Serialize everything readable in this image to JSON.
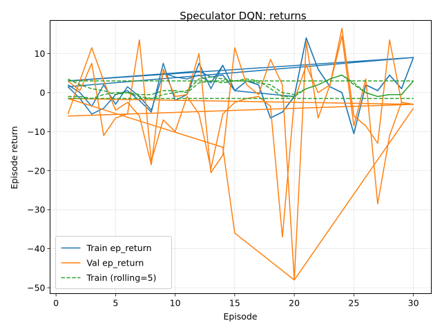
{
  "chart_data": {
    "type": "line",
    "title": "Speculator DQN: returns",
    "xlabel": "Episode",
    "ylabel": "Episode return",
    "xlim": [
      -0.5,
      31.5
    ],
    "ylim": [
      -51.5,
      18.5
    ],
    "x_ticks": [
      0,
      5,
      10,
      15,
      20,
      25,
      30
    ],
    "x_tick_labels": [
      "0",
      "5",
      "10",
      "15",
      "20",
      "25",
      "30"
    ],
    "y_ticks": [
      -50,
      -40,
      -30,
      -20,
      -10,
      0,
      10
    ],
    "y_tick_labels": [
      "−50",
      "−40",
      "−30",
      "−20",
      "−10",
      "0",
      "10"
    ],
    "grid": true,
    "legend_position": "lower-left",
    "series": [
      {
        "name": "Train ep_return",
        "color": "#1f77b4",
        "style": "solid",
        "runs": [
          {
            "x": [
              1,
              2,
              3,
              4,
              5,
              6,
              7,
              8,
              9,
              10,
              11,
              12,
              13,
              14,
              15,
              16,
              17,
              18,
              19,
              20,
              21,
              22,
              23,
              24,
              25,
              26,
              27,
              28,
              29,
              30
            ],
            "y": [
              1.5,
              -1.5,
              -5.5,
              -4.0,
              -0.5,
              0.5,
              -2.0,
              -5.0,
              7.5,
              -2.0,
              -0.5,
              7.5,
              1.0,
              7.0,
              0.5,
              3.0,
              2.0,
              -6.5,
              -5.0,
              -1.0,
              14.0,
              6.0,
              1.5,
              0.0,
              -10.5,
              2.0,
              0.5,
              4.5,
              1.0,
              9.0
            ]
          },
          {
            "x": [
              1,
              2,
              3,
              4,
              5,
              6,
              7,
              8,
              9,
              10,
              11,
              12,
              13,
              14,
              15,
              16,
              17,
              18,
              19,
              20,
              21,
              22,
              23,
              24,
              25,
              26,
              27,
              28,
              29,
              30
            ],
            "y": [
              2.0,
              0.0,
              -3.5,
              2.0,
              -3.0,
              1.5,
              -1.0,
              -4.5,
              5.0,
              4.0,
              3.5,
              4.5,
              2.5,
              7.0,
              0.5,
              3.0,
              2.0,
              -6.5,
              -5.0,
              -1.0,
              14.0,
              6.0,
              1.5,
              0.0,
              -10.5,
              2.0,
              0.5,
              4.5,
              1.0,
              9.0
            ]
          },
          {
            "x": [
              1,
              30,
              1
            ],
            "y": [
              1.5,
              9.0,
              3.0
            ]
          },
          {
            "x": [
              1,
              12,
              13,
              14,
              15,
              20
            ],
            "y": [
              3.0,
              5.5,
              4.0,
              4.5,
              0.5,
              -1.0
            ]
          }
        ]
      },
      {
        "name": "Val ep_return",
        "color": "#ff7f0e",
        "style": "solid",
        "runs": [
          {
            "x": [
              1,
              2,
              3,
              4,
              5,
              6,
              7,
              8,
              9,
              10,
              11,
              12,
              13,
              14,
              15,
              16,
              17,
              18,
              19,
              20,
              21,
              22,
              23,
              24,
              25,
              26,
              27,
              28,
              29,
              30
            ],
            "y": [
              -5.5,
              3.0,
              11.5,
              3.0,
              -4.5,
              -2.5,
              -6.0,
              -18.5,
              6.0,
              -1.0,
              -0.5,
              10.0,
              -20.5,
              -16.0,
              11.5,
              2.0,
              -0.5,
              8.5,
              2.0,
              -48.0,
              13.0,
              -6.5,
              2.0,
              16.5,
              -6.0,
              -8.5,
              -13.0,
              13.5,
              -2.5,
              -3.0
            ]
          },
          {
            "x": [
              1,
              2,
              3,
              4,
              5,
              6,
              7,
              8,
              9,
              10,
              11,
              12,
              13,
              14,
              15,
              16,
              17,
              18,
              19,
              20,
              21,
              22,
              23,
              24,
              25,
              26,
              27,
              28,
              29,
              30
            ],
            "y": [
              3.0,
              0.5,
              7.5,
              -11.0,
              -6.5,
              -5.5,
              13.5,
              -17.5,
              -7.0,
              -10.0,
              -1.0,
              -5.5,
              -19.5,
              -5.5,
              -2.5,
              -1.5,
              -1.0,
              -3.5,
              -37.0,
              -2.0,
              7.0,
              0.0,
              2.0,
              14.5,
              -8.5,
              3.5,
              -28.5,
              -11.0,
              -2.5,
              -3.0
            ]
          },
          {
            "x": [
              1,
              30,
              1
            ],
            "y": [
              -6.0,
              -3.0,
              -1.5
            ]
          },
          {
            "x": [
              1,
              14,
              15,
              20,
              30
            ],
            "y": [
              -1.5,
              -14.0,
              -36.0,
              -48.0,
              -4.0
            ]
          }
        ]
      },
      {
        "name": "Train (rolling=5)",
        "color": "#2ca02c",
        "style": "dashed",
        "runs": [
          {
            "x": [
              1,
              2,
              3,
              4,
              5,
              6,
              7,
              8,
              9,
              10,
              11,
              12,
              13,
              14,
              15,
              16,
              17,
              18,
              19,
              20,
              21,
              22,
              23,
              24,
              25,
              26,
              27,
              28,
              29,
              30
            ],
            "y": [
              3.0,
              3.0,
              3.0,
              3.0,
              3.0,
              3.0,
              3.0,
              3.0,
              3.0,
              3.0,
              3.0,
              3.0,
              3.0,
              3.0,
              3.0,
              3.0,
              3.0,
              3.0,
              3.0,
              3.0,
              3.0,
              3.0,
              3.0,
              3.0,
              3.0,
              3.0,
              3.0,
              3.0,
              3.0,
              3.0
            ]
          },
          {
            "x": [
              1,
              2,
              3,
              4,
              5,
              6,
              7,
              8,
              9,
              10,
              11,
              12,
              13,
              14,
              15,
              16,
              17,
              18,
              19,
              20,
              21,
              22,
              23,
              24,
              25,
              26,
              27,
              28,
              29,
              30
            ],
            "y": [
              -1.5,
              -1.5,
              -1.5,
              -1.5,
              -1.5,
              -1.5,
              -1.5,
              -1.5,
              -1.5,
              -1.5,
              -1.5,
              -1.5,
              -1.5,
              -1.5,
              -1.5,
              -1.5,
              -1.5,
              -1.5,
              -1.5,
              -1.5,
              -1.5,
              -1.5,
              -1.5,
              -1.5,
              -1.5,
              -1.5,
              -1.5,
              -1.5,
              -1.5,
              -1.5
            ]
          },
          {
            "x": [
              1,
              2,
              3,
              4,
              5,
              6,
              7,
              8,
              9,
              10,
              11,
              12,
              13,
              14,
              15,
              16,
              17,
              18,
              19,
              20,
              21,
              22,
              23,
              24,
              25,
              26,
              27,
              28,
              29,
              30
            ],
            "y": [
              3.5,
              2.0,
              1.0,
              0.5,
              -0.5,
              0.0,
              -0.5,
              -0.5,
              0.5,
              0.5,
              0.0,
              2.5,
              3.0,
              2.5,
              3.0,
              3.5,
              3.0,
              1.0,
              -1.0,
              -1.0,
              1.0,
              2.0,
              3.5,
              4.5,
              2.5,
              0.0,
              -1.0,
              -0.5,
              -0.5,
              3.0
            ]
          },
          {
            "x": [
              1,
              2,
              3,
              4,
              5,
              6,
              7,
              8,
              9,
              10,
              11,
              12,
              13,
              14,
              15,
              16,
              17,
              18,
              19,
              20,
              21,
              22,
              23,
              24,
              25,
              26,
              27,
              28,
              29,
              30
            ],
            "y": [
              -1.0,
              -1.0,
              -1.5,
              -0.5,
              0.0,
              0.0,
              -1.0,
              -1.5,
              -0.5,
              0.0,
              0.5,
              3.5,
              4.0,
              3.5,
              3.0,
              3.0,
              2.5,
              2.0,
              0.0,
              -0.5,
              1.0,
              2.0,
              3.5,
              4.5,
              2.0,
              0.0,
              -1.0,
              -0.5,
              -0.5,
              3.0
            ]
          }
        ]
      }
    ]
  }
}
